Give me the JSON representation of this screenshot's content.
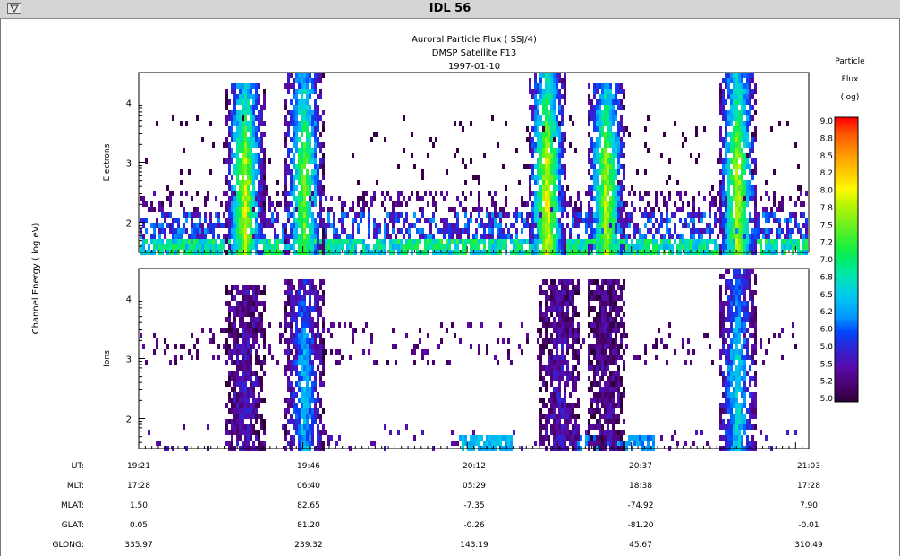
{
  "window": {
    "title": "IDL 56"
  },
  "chart_data": {
    "type": "heatmap",
    "title": [
      "Auroral Particle Flux ( SSJ/4)",
      "DMSP Satellite F13",
      "1997-01-10"
    ],
    "ylabel": "Channel Energy ( log eV)",
    "panels": [
      {
        "name": "Electrons",
        "ylim": [
          1.5,
          4.5
        ],
        "yticks": [
          "2",
          "3",
          "4"
        ]
      },
      {
        "name": "Ions",
        "ylim": [
          1.5,
          4.5
        ],
        "yticks": [
          "2",
          "3",
          "4"
        ]
      }
    ],
    "colorbar": {
      "title": [
        "Particle",
        "Flux",
        "(log)"
      ],
      "range": [
        5.0,
        9.0
      ],
      "ticks": [
        "9.0",
        "8.8",
        "8.5",
        "8.2",
        "8.0",
        "7.8",
        "7.5",
        "7.2",
        "7.0",
        "6.8",
        "6.5",
        "6.2",
        "6.0",
        "5.8",
        "5.5",
        "5.2",
        "5.0"
      ]
    },
    "axis_table": [
      {
        "label": "UT:",
        "values": [
          "19:21",
          "19:46",
          "20:12",
          "20:37",
          "21:03"
        ]
      },
      {
        "label": "MLT:",
        "values": [
          "17:28",
          "06:40",
          "05:29",
          "18:38",
          "17:28"
        ]
      },
      {
        "label": "MLAT:",
        "values": [
          "1.50",
          "82.65",
          "-7.35",
          "-74.92",
          "7.90"
        ]
      },
      {
        "label": "GLAT:",
        "values": [
          "0.05",
          "81.20",
          "-0.26",
          "-81.20",
          "-0.01"
        ]
      },
      {
        "label": "GLONG:",
        "values": [
          "335.97",
          "239.32",
          "143.19",
          "45.67",
          "310.49"
        ]
      }
    ],
    "electron_bursts": [
      {
        "ut": "19:37",
        "top": 4.3,
        "peak": 7.9
      },
      {
        "ut": "19:46",
        "top": 4.5,
        "peak": 7.5
      },
      {
        "ut": "20:23",
        "top": 4.5,
        "peak": 8.0
      },
      {
        "ut": "20:32",
        "top": 4.3,
        "peak": 7.8
      },
      {
        "ut": "20:52",
        "top": 4.5,
        "peak": 7.8
      }
    ],
    "ion_bursts": [
      {
        "ut": "19:37",
        "top": 4.2,
        "peak": 5.6
      },
      {
        "ut": "19:46",
        "top": 4.3,
        "peak": 6.4
      },
      {
        "ut": "20:25",
        "top": 4.3,
        "peak": 5.6
      },
      {
        "ut": "20:32",
        "top": 4.3,
        "peak": 5.4
      },
      {
        "ut": "20:52",
        "top": 4.5,
        "peak": 6.6
      }
    ],
    "grid": false
  }
}
